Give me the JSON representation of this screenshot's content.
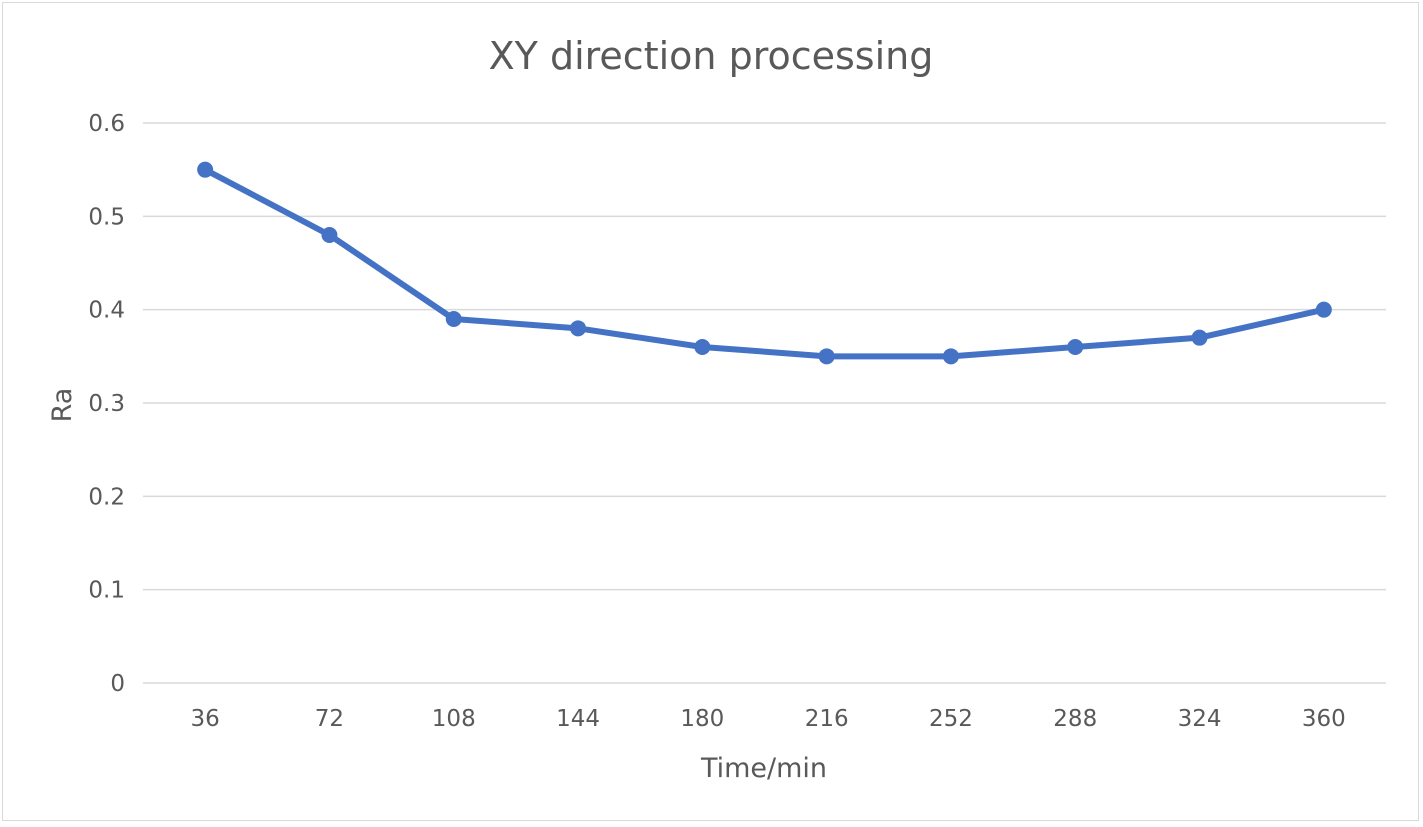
{
  "chart_data": {
    "type": "line",
    "title": "XY direction processing",
    "xlabel": "Time/min",
    "ylabel": "Ra",
    "categories": [
      "36",
      "72",
      "108",
      "144",
      "180",
      "216",
      "252",
      "288",
      "324",
      "360"
    ],
    "series": [
      {
        "values": [
          0.55,
          0.48,
          0.39,
          0.38,
          0.36,
          0.35,
          0.35,
          0.36,
          0.37,
          0.4
        ],
        "color": "#4472c4",
        "marker": "circle"
      }
    ],
    "ylim": [
      0,
      0.6
    ],
    "yticks": [
      "0",
      "0.1",
      "0.2",
      "0.3",
      "0.4",
      "0.5",
      "0.6"
    ],
    "grid": true,
    "legend": "none"
  }
}
